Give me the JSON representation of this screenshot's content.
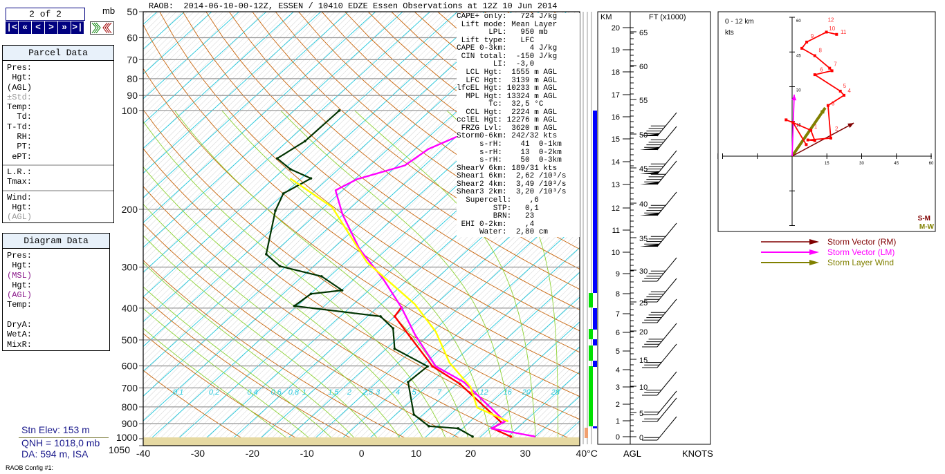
{
  "nav": {
    "counter": "2 of 2",
    "buttons": [
      "|<",
      "«",
      "<",
      ">",
      "»",
      ">|"
    ],
    "unit": "mb"
  },
  "title": "RAOB:  2014-06-10-00-12Z, ESSEN / 10410 EDZE Essen Observations at 12Z 10 Jun 2014",
  "parcel_panel": {
    "title": "Parcel Data",
    "group1": [
      "Pres:",
      " Hgt:",
      "(AGL)",
      "±Std:",
      "Temp:",
      "  Td:",
      "T-Td:",
      "  RH:",
      "  PT:",
      " ePT:"
    ],
    "group2": [
      "L.R.:",
      "Tmax:"
    ],
    "group3": [
      "Wind:",
      " Hgt:",
      "(AGL)"
    ]
  },
  "diagram_panel": {
    "title": "Diagram Data",
    "lines": [
      "Pres:",
      " Hgt:",
      "(MSL)",
      " Hgt:",
      "(AGL)",
      "Temp:",
      "",
      "DryA:",
      "WetA:",
      "MixR:"
    ]
  },
  "station": {
    "elev": "Stn Elev: 153 m",
    "qnh": "QNH = 1018,0 mb",
    "da": "DA: 594 m, ISA",
    "config": "RAOB Config #1:"
  },
  "params": [
    "CAPE+ only:   724 J/kg",
    " Lift mode: Mean Layer",
    "       LPL:   950 mb",
    " Lift type:   LFC",
    "CAPE 0-3km:     4 J/kg",
    " CIN total:  -150 J/kg",
    "        LI:  -3,0",
    "  LCL Hgt:  1555 m AGL",
    "  LFC Hgt:  3139 m AGL",
    "lfcEL Hgt: 10233 m AGL",
    "  MPL Hgt: 13324 m AGL",
    "       Tc:  32,5 °C",
    "  CCL Hgt:  2224 m AGL",
    "cclEL Hgt: 12276 m AGL",
    " FRZG Lvl:  3620 m AGL",
    "Storm0-6km: 242/32 kts",
    "     s-rH:    41  0-1km",
    "     s-rH:    13  0-2km",
    "     s-rH:    50  0-3km",
    "ShearV 6km: 189/31 kts",
    "Shear1 6km:  2,62 /10³/s",
    "Shear2 4km:  3,49 /10³/s",
    "Shear3 2km:  3,20 /10³/s",
    "  Supercell:    ,6",
    "        STP:   0,1",
    "        BRN:   23",
    " EHI 0-2km:    ,4",
    "     Water:  2,80 cm"
  ],
  "side_axis": {
    "km_label": "KM",
    "ft_label": "FT (x1000)",
    "agl_label": "AGL",
    "knots_label": "KNOTS",
    "km_ticks": [
      "0",
      "1",
      "2",
      "3",
      "4",
      "5",
      "6",
      "7",
      "8",
      "9",
      "10",
      "11",
      "12",
      "13",
      "14",
      "15",
      "16",
      "17",
      "18",
      "19",
      "20"
    ],
    "ft_ticks": [
      "0",
      "5",
      "10",
      "15",
      "20",
      "25",
      "30",
      "35",
      "40",
      "45",
      "50",
      "55",
      "60",
      "65"
    ]
  },
  "hodograph": {
    "title": "0 - 12 km",
    "unit": "kts",
    "ticks": [
      "15",
      "30",
      "45",
      "60"
    ],
    "corner_sm": "S-M",
    "corner_mw": "M-W",
    "path": [
      [
        6.1,
        5.0
      ],
      [
        0.4,
        14.5
      ],
      [
        -2.6,
        15.7
      ],
      [
        0.4,
        14.5
      ],
      [
        8.1,
        11.2
      ],
      [
        9.8,
        6.7
      ],
      [
        6.8,
        7.0
      ],
      [
        16.7,
        7.8
      ],
      [
        15.5,
        21.9
      ],
      [
        22.4,
        26.3
      ],
      [
        20.8,
        28.1
      ],
      [
        9.8,
        35.2
      ],
      [
        17.2,
        36.9
      ],
      [
        16.2,
        38.0
      ],
      [
        9.8,
        43.4
      ],
      [
        4.2,
        46.6
      ],
      [
        6.3,
        49.3
      ],
      [
        14.8,
        53.6
      ],
      [
        19.2,
        52.6
      ]
    ],
    "labels": [
      {
        "t": "1",
        "u": 9.5,
        "v": 12
      },
      {
        "t": "2",
        "u": 18.5,
        "v": 11
      },
      {
        "t": "3",
        "u": 17,
        "v": 22
      },
      {
        "t": "4",
        "u": 24,
        "v": 27.5
      },
      {
        "t": "5",
        "u": 22,
        "v": 29.5
      },
      {
        "t": "6",
        "u": 12,
        "v": 36.5
      },
      {
        "t": "7",
        "u": 18,
        "v": 39
      },
      {
        "t": "8",
        "u": 11.5,
        "v": 45
      },
      {
        "t": "9",
        "u": 8,
        "v": 51
      },
      {
        "t": "10",
        "u": 16.5,
        "v": 55
      },
      {
        "t": "11",
        "u": 20,
        "v": 54
      },
      {
        "t": "12",
        "u": 16,
        "v": 56
      }
    ],
    "vectors": {
      "rm": [
        26.6,
        14.3
      ],
      "lm": [
        0.9,
        26.6
      ],
      "layer": [
        14.3,
        20.9
      ]
    },
    "legend": [
      "Storm Vector (RM)",
      "Storm Vector (LM)",
      "Storm Layer Wind"
    ],
    "colors": {
      "rm": "#800000",
      "lm": "#ff00ff",
      "layer": "#808000",
      "path": "#ff0000"
    }
  },
  "chart_data": {
    "type": "line",
    "title": "Skew-T log-P sounding",
    "xlabel": "°C",
    "ylabel": "mb",
    "xlim": [
      -40,
      40
    ],
    "ylim": [
      1050,
      50
    ],
    "pressure_ticks": [
      "50",
      "60",
      "70",
      "80",
      "90",
      "100",
      "200",
      "300",
      "400",
      "500",
      "600",
      "700",
      "800",
      "900",
      "1000",
      "1050"
    ],
    "temp_ticks": [
      "-40",
      "-30",
      "-20",
      "-10",
      "0",
      "10",
      "20",
      "30",
      "40°C"
    ],
    "mixing_ratio_labels": [
      "0,1",
      "0,2",
      "0,4",
      "0,6",
      "0,8",
      "1",
      "1,5",
      "2",
      "2,5",
      "3",
      "4",
      "5",
      "7",
      "12",
      "16",
      "20",
      "28"
    ],
    "mixing_ratio_values": [
      0.1,
      0.2,
      0.4,
      0.6,
      0.8,
      1,
      1.5,
      2,
      2.5,
      3,
      4,
      5,
      7,
      12,
      16,
      20,
      28
    ],
    "series": [
      {
        "name": "temperature",
        "color": "#ff0000",
        "points": [
          [
            985,
            25.5
          ],
          [
            930,
            20.5
          ],
          [
            893,
            21
          ],
          [
            680,
            5.5
          ],
          [
            602,
            -3
          ],
          [
            495,
            -12.5
          ],
          [
            424,
            -20
          ],
          [
            398,
            -20.6
          ]
        ]
      },
      {
        "name": "virtual-temperature",
        "color": "#ff00ff",
        "points": [
          [
            985,
            30
          ],
          [
            930,
            20.3
          ],
          [
            886,
            21.4
          ],
          [
            672,
            5.9
          ],
          [
            602,
            -2.4
          ],
          [
            483,
            -12.5
          ],
          [
            398,
            -20.6
          ],
          [
            328,
            -29.4
          ],
          [
            264,
            -40.1
          ],
          [
            207,
            -50.2
          ],
          [
            175,
            -56.3
          ],
          [
            162,
            -54.6
          ],
          [
            147,
            -48.6
          ],
          [
            131,
            -47.6
          ],
          [
            113,
            -42.9
          ],
          [
            100,
            -43.2
          ]
        ]
      },
      {
        "name": "dewpoint",
        "color": "#003300",
        "points": [
          [
            985,
            18.5
          ],
          [
            930,
            14.2
          ],
          [
            916,
            8.4
          ],
          [
            844,
            3.3
          ],
          [
            672,
            -4.3
          ],
          [
            602,
            -3.9
          ],
          [
            532,
            -13.5
          ],
          [
            461,
            -17.9
          ],
          [
            424,
            -22.6
          ],
          [
            394,
            -40.5
          ],
          [
            362,
            -39.9
          ],
          [
            353,
            -34.9
          ],
          [
            320,
            -41.5
          ],
          [
            298,
            -51.2
          ],
          [
            274,
            -56.1
          ],
          [
            202,
            -63.2
          ],
          [
            179,
            -65.2
          ],
          [
            161,
            -63.2
          ],
          [
            151,
            -68.8
          ],
          [
            140,
            -73.4
          ],
          [
            124,
            -71.8
          ],
          [
            100,
            -71.7
          ]
        ]
      },
      {
        "name": "parcel",
        "color": "#ffff00",
        "points": [
          [
            886,
            22
          ],
          [
            804,
            13.5
          ],
          [
            695,
            8.1
          ],
          [
            587,
            -0.6
          ],
          [
            472,
            -9.4
          ],
          [
            389,
            -18.8
          ],
          [
            290,
            -36
          ],
          [
            197,
            -53.5
          ],
          [
            161,
            -67
          ]
        ]
      }
    ]
  }
}
